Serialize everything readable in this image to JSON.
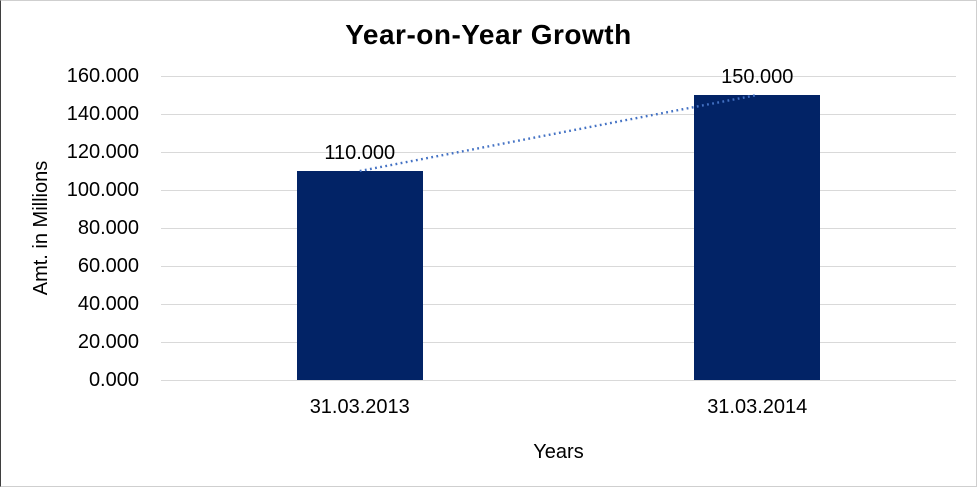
{
  "frame": {
    "background": "#ffffff",
    "border_light": "#cfcfcf",
    "border_dark": "#3f3f3f"
  },
  "chart_data": {
    "type": "bar",
    "title": "Year-on-Year Growth",
    "xlabel": "Years",
    "ylabel": "Amt. in Millions",
    "categories": [
      "31.03.2013",
      "31.03.2014"
    ],
    "values": [
      110,
      150
    ],
    "data_labels": [
      "110.000",
      "150.000"
    ],
    "ylim": [
      0,
      160
    ],
    "ytick_step": 20,
    "ytick_labels": [
      "0.000",
      "20.000",
      "40.000",
      "60.000",
      "80.000",
      "100.000",
      "120.000",
      "140.000",
      "160.000"
    ],
    "grid": true,
    "legend": "none",
    "bar_color": "#022366",
    "gridline_color": "#d9d9d9",
    "text_color": "#000000",
    "trendline": {
      "style": "dotted",
      "color": "#4472c4",
      "values": [
        110,
        150
      ]
    }
  }
}
